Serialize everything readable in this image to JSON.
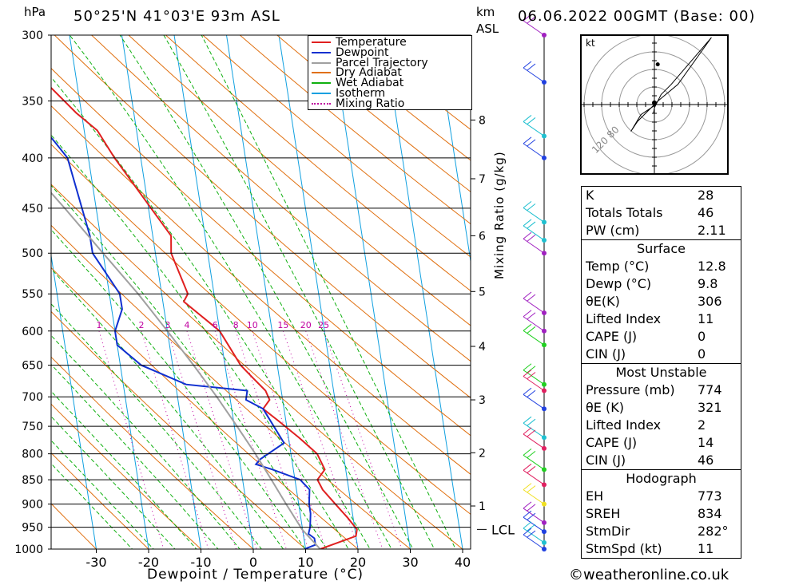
{
  "header": {
    "location": "50°25'N  41°03'E  93m  ASL",
    "datetime": "06.06.2022  00GMT  (Base: 00)",
    "hpa": "hPa",
    "km": "km",
    "asl": "ASL",
    "xlabel": "Dewpoint / Temperature (°C)",
    "mixing_label": "Mixing Ratio (g/kg)",
    "lcl_label": "LCL",
    "copyright": "©weatheronline.co.uk"
  },
  "legend": [
    {
      "label": "Temperature",
      "color": "#e02020",
      "style": "solid"
    },
    {
      "label": "Dewpoint",
      "color": "#1030d0",
      "style": "solid"
    },
    {
      "label": "Parcel Trajectory",
      "color": "#a0a0a0",
      "style": "solid"
    },
    {
      "label": "Dry Adiabat",
      "color": "#e07010",
      "style": "solid"
    },
    {
      "label": "Wet Adiabat",
      "color": "#10b010",
      "style": "solid"
    },
    {
      "label": "Isotherm",
      "color": "#10a0e0",
      "style": "solid"
    },
    {
      "label": "Mixing Ratio",
      "color": "#c000a0",
      "style": "dotted"
    }
  ],
  "chart_data": {
    "type": "line",
    "title": "",
    "xlabel": "Dewpoint / Temperature (°C)",
    "ylabel": "hPa",
    "x_ticks": [
      -30,
      -20,
      -10,
      0,
      10,
      20,
      30,
      40
    ],
    "pressure_levels": [
      300,
      350,
      400,
      450,
      500,
      550,
      600,
      650,
      700,
      750,
      800,
      850,
      900,
      950,
      1000
    ],
    "km_levels": [
      {
        "km": 1,
        "p": 904
      },
      {
        "km": 2,
        "p": 798
      },
      {
        "km": 3,
        "p": 705
      },
      {
        "km": 4,
        "p": 622
      },
      {
        "km": 5,
        "p": 547
      },
      {
        "km": 6,
        "p": 480
      },
      {
        "km": 7,
        "p": 420
      },
      {
        "km": 8,
        "p": 366
      }
    ],
    "mixing_ratio_labels": [
      "1",
      "2",
      "3",
      "4",
      "6",
      "8",
      "10",
      "15",
      "20",
      "25"
    ],
    "mixing_ratio_values": [
      1,
      2,
      3,
      4,
      6,
      8,
      10,
      15,
      20,
      25
    ],
    "lcl_pressure": 955,
    "series": [
      {
        "name": "Temperature",
        "color": "#e02020",
        "points": [
          [
            1000,
            12.8
          ],
          [
            970,
            20
          ],
          [
            955,
            20.4
          ],
          [
            930,
            19
          ],
          [
            900,
            17
          ],
          [
            870,
            15
          ],
          [
            850,
            14.3
          ],
          [
            830,
            16
          ],
          [
            800,
            15
          ],
          [
            770,
            12
          ],
          [
            740,
            8.5
          ],
          [
            720,
            6
          ],
          [
            705,
            7.5
          ],
          [
            690,
            7
          ],
          [
            670,
            5
          ],
          [
            650,
            3
          ],
          [
            600,
            0
          ],
          [
            560,
            -6
          ],
          [
            550,
            -5
          ],
          [
            500,
            -7
          ],
          [
            480,
            -6.5
          ],
          [
            400,
            -15
          ],
          [
            375,
            -17.5
          ],
          [
            360,
            -21
          ],
          [
            330,
            -27
          ],
          [
            300,
            -30
          ]
        ]
      },
      {
        "name": "Dewpoint",
        "color": "#1030d0",
        "points": [
          [
            1000,
            9.8
          ],
          [
            990,
            12
          ],
          [
            975,
            12
          ],
          [
            965,
            11
          ],
          [
            950,
            11.5
          ],
          [
            920,
            12
          ],
          [
            900,
            12
          ],
          [
            870,
            12.5
          ],
          [
            850,
            11
          ],
          [
            830,
            6
          ],
          [
            820,
            3
          ],
          [
            810,
            4
          ],
          [
            780,
            9
          ],
          [
            720,
            6
          ],
          [
            705,
            3
          ],
          [
            690,
            3.5
          ],
          [
            680,
            -8
          ],
          [
            650,
            -16
          ],
          [
            620,
            -20
          ],
          [
            600,
            -20
          ],
          [
            570,
            -18
          ],
          [
            550,
            -18
          ],
          [
            500,
            -22
          ],
          [
            480,
            -22
          ],
          [
            400,
            -24
          ],
          [
            385,
            -26
          ],
          [
            365,
            -29
          ],
          [
            350,
            -30
          ],
          [
            300,
            -38
          ]
        ]
      },
      {
        "name": "Parcel Trajectory",
        "color": "#a0a0a0",
        "points": [
          [
            1000,
            12.8
          ],
          [
            955,
            9.9
          ],
          [
            900,
            7.6
          ],
          [
            850,
            5.5
          ],
          [
            800,
            3.2
          ],
          [
            750,
            0.5
          ],
          [
            700,
            -2.5
          ],
          [
            650,
            -6
          ],
          [
            600,
            -10
          ],
          [
            550,
            -14.5
          ],
          [
            500,
            -20
          ],
          [
            450,
            -26
          ],
          [
            400,
            -33
          ],
          [
            350,
            -41
          ],
          [
            300,
            -50
          ]
        ]
      }
    ]
  },
  "wind_barbs_count": 30,
  "hodograph": {
    "unit": "kt",
    "ring_labels": "120 80",
    "trace": [
      [
        -0.5,
        -5
      ],
      [
        0,
        -2
      ],
      [
        2,
        2
      ],
      [
        4,
        6
      ],
      [
        10,
        12
      ],
      [
        34,
        40
      ],
      [
        14,
        12
      ],
      [
        2,
        2
      ],
      [
        -10,
        -10
      ],
      [
        -14,
        -16
      ],
      [
        -8,
        -6
      ],
      [
        -2,
        -2
      ],
      [
        1,
        0
      ]
    ],
    "storm_motion": [
      0,
      1
    ],
    "dot": [
      2,
      24
    ]
  },
  "indices": {
    "basic": [
      {
        "k": "K",
        "v": "28"
      },
      {
        "k": "Totals Totals",
        "v": "46"
      },
      {
        "k": "PW (cm)",
        "v": "2.11"
      }
    ],
    "surface_title": "Surface",
    "surface": [
      {
        "k": "Temp (°C)",
        "v": "12.8"
      },
      {
        "k": "Dewp (°C)",
        "v": "9.8"
      },
      {
        "k": "θE(K)",
        "v": "306"
      },
      {
        "k": "Lifted Index",
        "v": "11"
      },
      {
        "k": "CAPE (J)",
        "v": "0"
      },
      {
        "k": "CIN (J)",
        "v": "0"
      }
    ],
    "mu_title": "Most Unstable",
    "mu": [
      {
        "k": "Pressure (mb)",
        "v": "774"
      },
      {
        "k": "θE (K)",
        "v": "321"
      },
      {
        "k": "Lifted Index",
        "v": "2"
      },
      {
        "k": "CAPE (J)",
        "v": "14"
      },
      {
        "k": "CIN (J)",
        "v": "46"
      }
    ],
    "hodo_title": "Hodograph",
    "hodo": [
      {
        "k": "EH",
        "v": "773"
      },
      {
        "k": "SREH",
        "v": "834"
      },
      {
        "k": "StmDir",
        "v": "282°"
      },
      {
        "k": "StmSpd (kt)",
        "v": "11"
      }
    ]
  }
}
